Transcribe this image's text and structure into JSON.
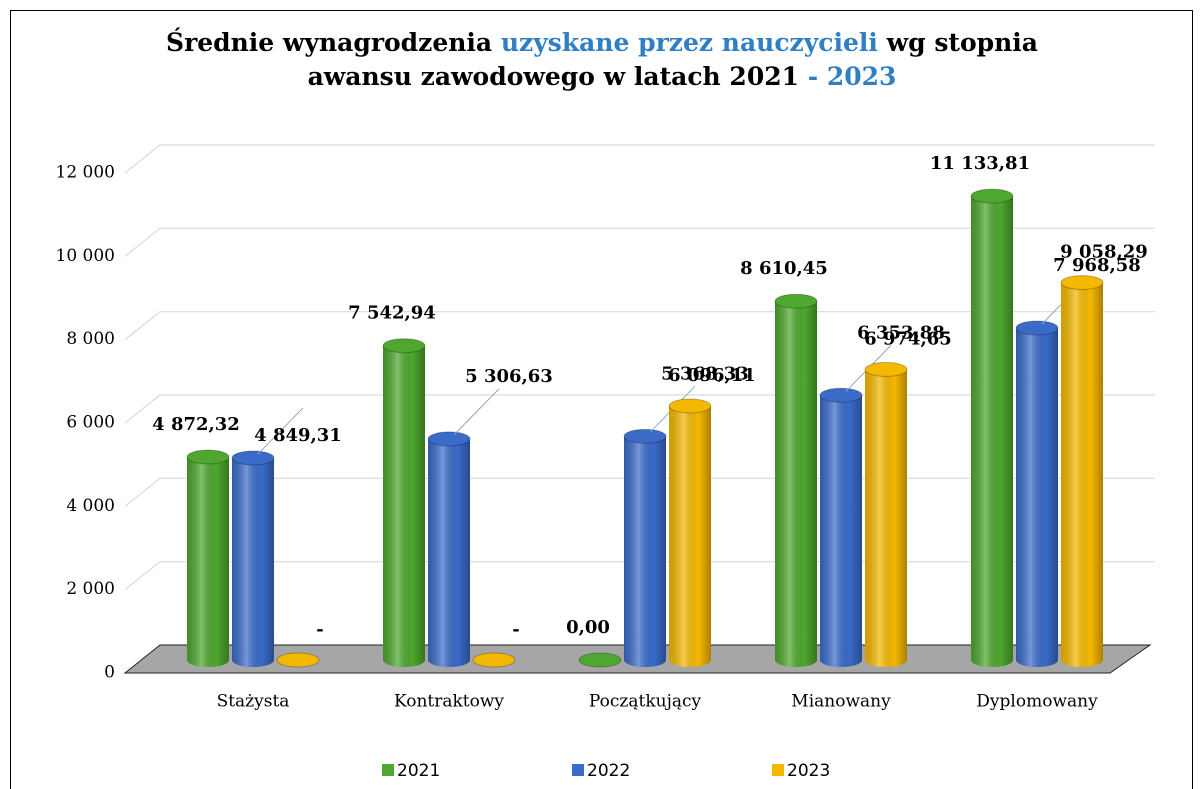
{
  "chart_data": {
    "type": "bar3d",
    "title": [
      "Średnie wynagrodzenia",
      "uzyskane przez nauczycieli",
      "wg stopnia",
      "awansu zawodowego w latach 2021",
      "- 2023"
    ],
    "categories": [
      "Stażysta",
      "Kontraktowy",
      "Początkujący",
      "Mianowany",
      "Dyplomowany"
    ],
    "series": [
      {
        "name": "2021",
        "color": "#4ea72e",
        "values": [
          4872.32,
          7542.94,
          0,
          8610.45,
          11133.81
        ],
        "value_labels": [
          "4 872,32",
          "7 542,94",
          "0,00",
          "8 610,45",
          "11 133,81"
        ]
      },
      {
        "name": "2022",
        "color": "#3a6bc9",
        "values": [
          4849.31,
          5306.63,
          5368.33,
          6353.88,
          7968.58
        ],
        "value_labels": [
          "4 849,31",
          "5 306,63",
          "5 368,33",
          "6 353,88",
          "7 968,58"
        ]
      },
      {
        "name": "2023",
        "color": "#f5b800",
        "values": [
          0,
          0,
          6096.11,
          6974.65,
          9058.29
        ],
        "value_labels": [
          "-",
          "-",
          "6 096,11",
          "6 974,65",
          "9 058,29"
        ]
      }
    ],
    "ylim": [
      0,
      12000
    ],
    "yticks": [
      0,
      {
        "value": 2000,
        "label": "2 000"
      },
      {
        "value": 4000,
        "label": "4 000"
      },
      {
        "value": 6000,
        "label": "6 000"
      },
      {
        "value": 8000,
        "label": "8 000"
      },
      {
        "value": 10000,
        "label": "10 000"
      },
      {
        "value": 12000,
        "label": "12 000"
      }
    ],
    "grid": true
  }
}
